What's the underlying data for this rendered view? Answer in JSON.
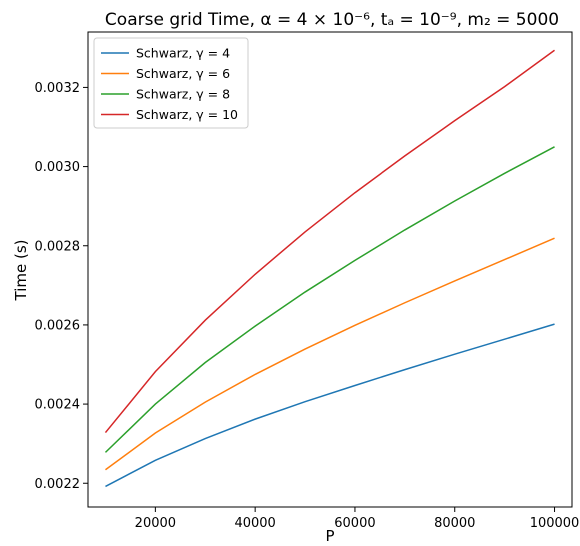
{
  "chart_data": {
    "type": "line",
    "title": "Coarse grid Time, α = 4 × 10⁻⁶, tₐ = 10⁻⁹, m₂ = 5000",
    "xlabel": "P",
    "ylabel": "Time (s)",
    "xlim": [
      6500,
      103500
    ],
    "ylim": [
      0.00214,
      0.00334
    ],
    "x_ticks": [
      20000,
      40000,
      60000,
      80000,
      100000
    ],
    "x_tick_labels": [
      "20000",
      "40000",
      "60000",
      "80000",
      "100000"
    ],
    "y_ticks": [
      0.0022,
      0.0024,
      0.0026,
      0.0028,
      0.003,
      0.0032
    ],
    "y_tick_labels": [
      "0.0022",
      "0.0024",
      "0.0026",
      "0.0028",
      "0.0030",
      "0.0032"
    ],
    "grid": false,
    "legend_position": "top-left",
    "x": [
      10000,
      20000,
      30000,
      40000,
      50000,
      60000,
      70000,
      80000,
      90000,
      100000
    ],
    "series": [
      {
        "name": "Schwarz, γ = 4",
        "color": "#1f77b4",
        "values": [
          0.002192,
          0.002258,
          0.002313,
          0.002362,
          0.002406,
          0.002447,
          0.002487,
          0.002526,
          0.002564,
          0.002602
        ]
      },
      {
        "name": "Schwarz, γ = 6",
        "color": "#ff7f0e",
        "values": [
          0.002234,
          0.002327,
          0.002405,
          0.002475,
          0.002539,
          0.002599,
          0.002656,
          0.002711,
          0.002765,
          0.002819
        ]
      },
      {
        "name": "Schwarz, γ = 8",
        "color": "#2ca02c",
        "values": [
          0.002278,
          0.0024,
          0.002505,
          0.002597,
          0.002683,
          0.002763,
          0.00284,
          0.002913,
          0.002983,
          0.00305
        ]
      },
      {
        "name": "Schwarz, γ = 10",
        "color": "#d62728",
        "values": [
          0.002328,
          0.002482,
          0.002612,
          0.002728,
          0.002835,
          0.002934,
          0.003027,
          0.003116,
          0.003202,
          0.003294
        ]
      }
    ]
  }
}
